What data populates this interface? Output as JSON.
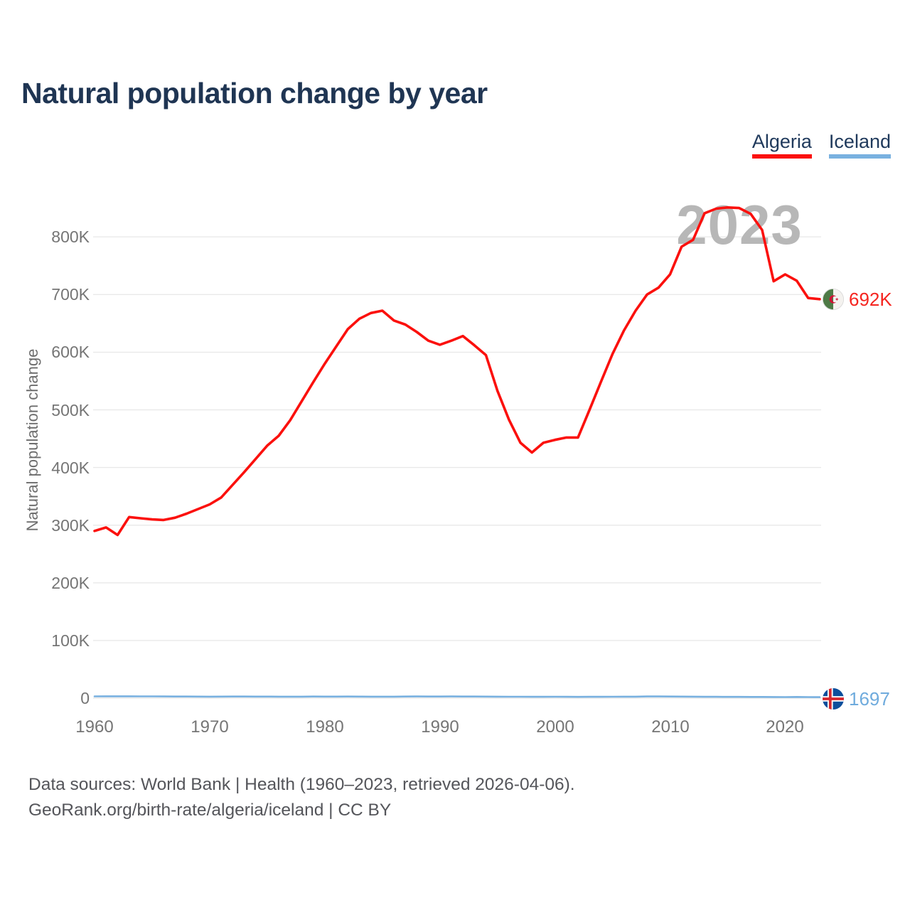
{
  "header": {
    "title": "Natural population change by year"
  },
  "legend": {
    "items": [
      {
        "label": "Algeria",
        "color": "#fb100d"
      },
      {
        "label": "Iceland",
        "color": "#79b1e0"
      }
    ]
  },
  "chart_data": {
    "type": "line",
    "title": "Natural population change by year",
    "xlabel": "",
    "ylabel": "Natural population change",
    "watermark": "2023",
    "grid": "horizontal",
    "legend_position": "top-right",
    "xlim": [
      1960,
      2023
    ],
    "ylim": [
      0,
      880000
    ],
    "xticks": [
      1960,
      1970,
      1980,
      1990,
      2000,
      2010,
      2020
    ],
    "yticks": {
      "values": [
        0,
        100000,
        200000,
        300000,
        400000,
        500000,
        600000,
        700000,
        800000
      ],
      "labels": [
        "0",
        "100K",
        "200K",
        "300K",
        "400K",
        "500K",
        "600K",
        "700K",
        "800K"
      ]
    },
    "x": [
      1960,
      1961,
      1962,
      1963,
      1964,
      1965,
      1966,
      1967,
      1968,
      1969,
      1970,
      1971,
      1972,
      1973,
      1974,
      1975,
      1976,
      1977,
      1978,
      1979,
      1980,
      1981,
      1982,
      1983,
      1984,
      1985,
      1986,
      1987,
      1988,
      1989,
      1990,
      1991,
      1992,
      1993,
      1994,
      1995,
      1996,
      1997,
      1998,
      1999,
      2000,
      2001,
      2002,
      2003,
      2004,
      2005,
      2006,
      2007,
      2008,
      2009,
      2010,
      2011,
      2012,
      2013,
      2014,
      2015,
      2016,
      2017,
      2018,
      2019,
      2020,
      2021,
      2022,
      2023
    ],
    "series": [
      {
        "name": "Algeria",
        "color": "#fb100d",
        "end_label": "692K",
        "end_label_color": "#f52520",
        "values": [
          290000,
          296000,
          283000,
          314000,
          312000,
          310000,
          309000,
          313000,
          320000,
          328000,
          336000,
          348000,
          370000,
          392000,
          415000,
          438000,
          455000,
          482000,
          515000,
          548000,
          580000,
          610000,
          640000,
          658000,
          668000,
          672000,
          655000,
          648000,
          635000,
          620000,
          613000,
          620000,
          628000,
          612000,
          595000,
          533000,
          483000,
          443000,
          426000,
          443000,
          448000,
          452000,
          452000,
          500000,
          549000,
          597000,
          638000,
          672000,
          700000,
          712000,
          735000,
          783000,
          795000,
          841000,
          849000,
          851000,
          850000,
          840000,
          812000,
          723000,
          735000,
          724000,
          694000,
          692000
        ]
      },
      {
        "name": "Iceland",
        "color": "#79b1e0",
        "end_label": "1697",
        "end_label_color": "#6fabdd",
        "values": [
          3056,
          3160,
          3145,
          3218,
          3115,
          3050,
          2980,
          2870,
          2800,
          2680,
          2600,
          2700,
          2850,
          2800,
          2750,
          2700,
          2600,
          2550,
          2600,
          2800,
          2750,
          2700,
          2800,
          2750,
          2650,
          2600,
          2650,
          2800,
          2900,
          2850,
          2800,
          2900,
          2850,
          2800,
          2700,
          2600,
          2500,
          2450,
          2400,
          2350,
          2430,
          2350,
          2250,
          2300,
          2350,
          2450,
          2550,
          2650,
          2900,
          3000,
          2850,
          2700,
          2600,
          2400,
          2300,
          2250,
          2200,
          2150,
          2100,
          2000,
          1900,
          2100,
          1900,
          1697
        ]
      }
    ]
  },
  "footer": {
    "line1": "Data sources: World Bank | Health (1960–2023, retrieved 2026-04-06).",
    "line2": "GeoRank.org/birth-rate/algeria/iceland | CC BY"
  }
}
